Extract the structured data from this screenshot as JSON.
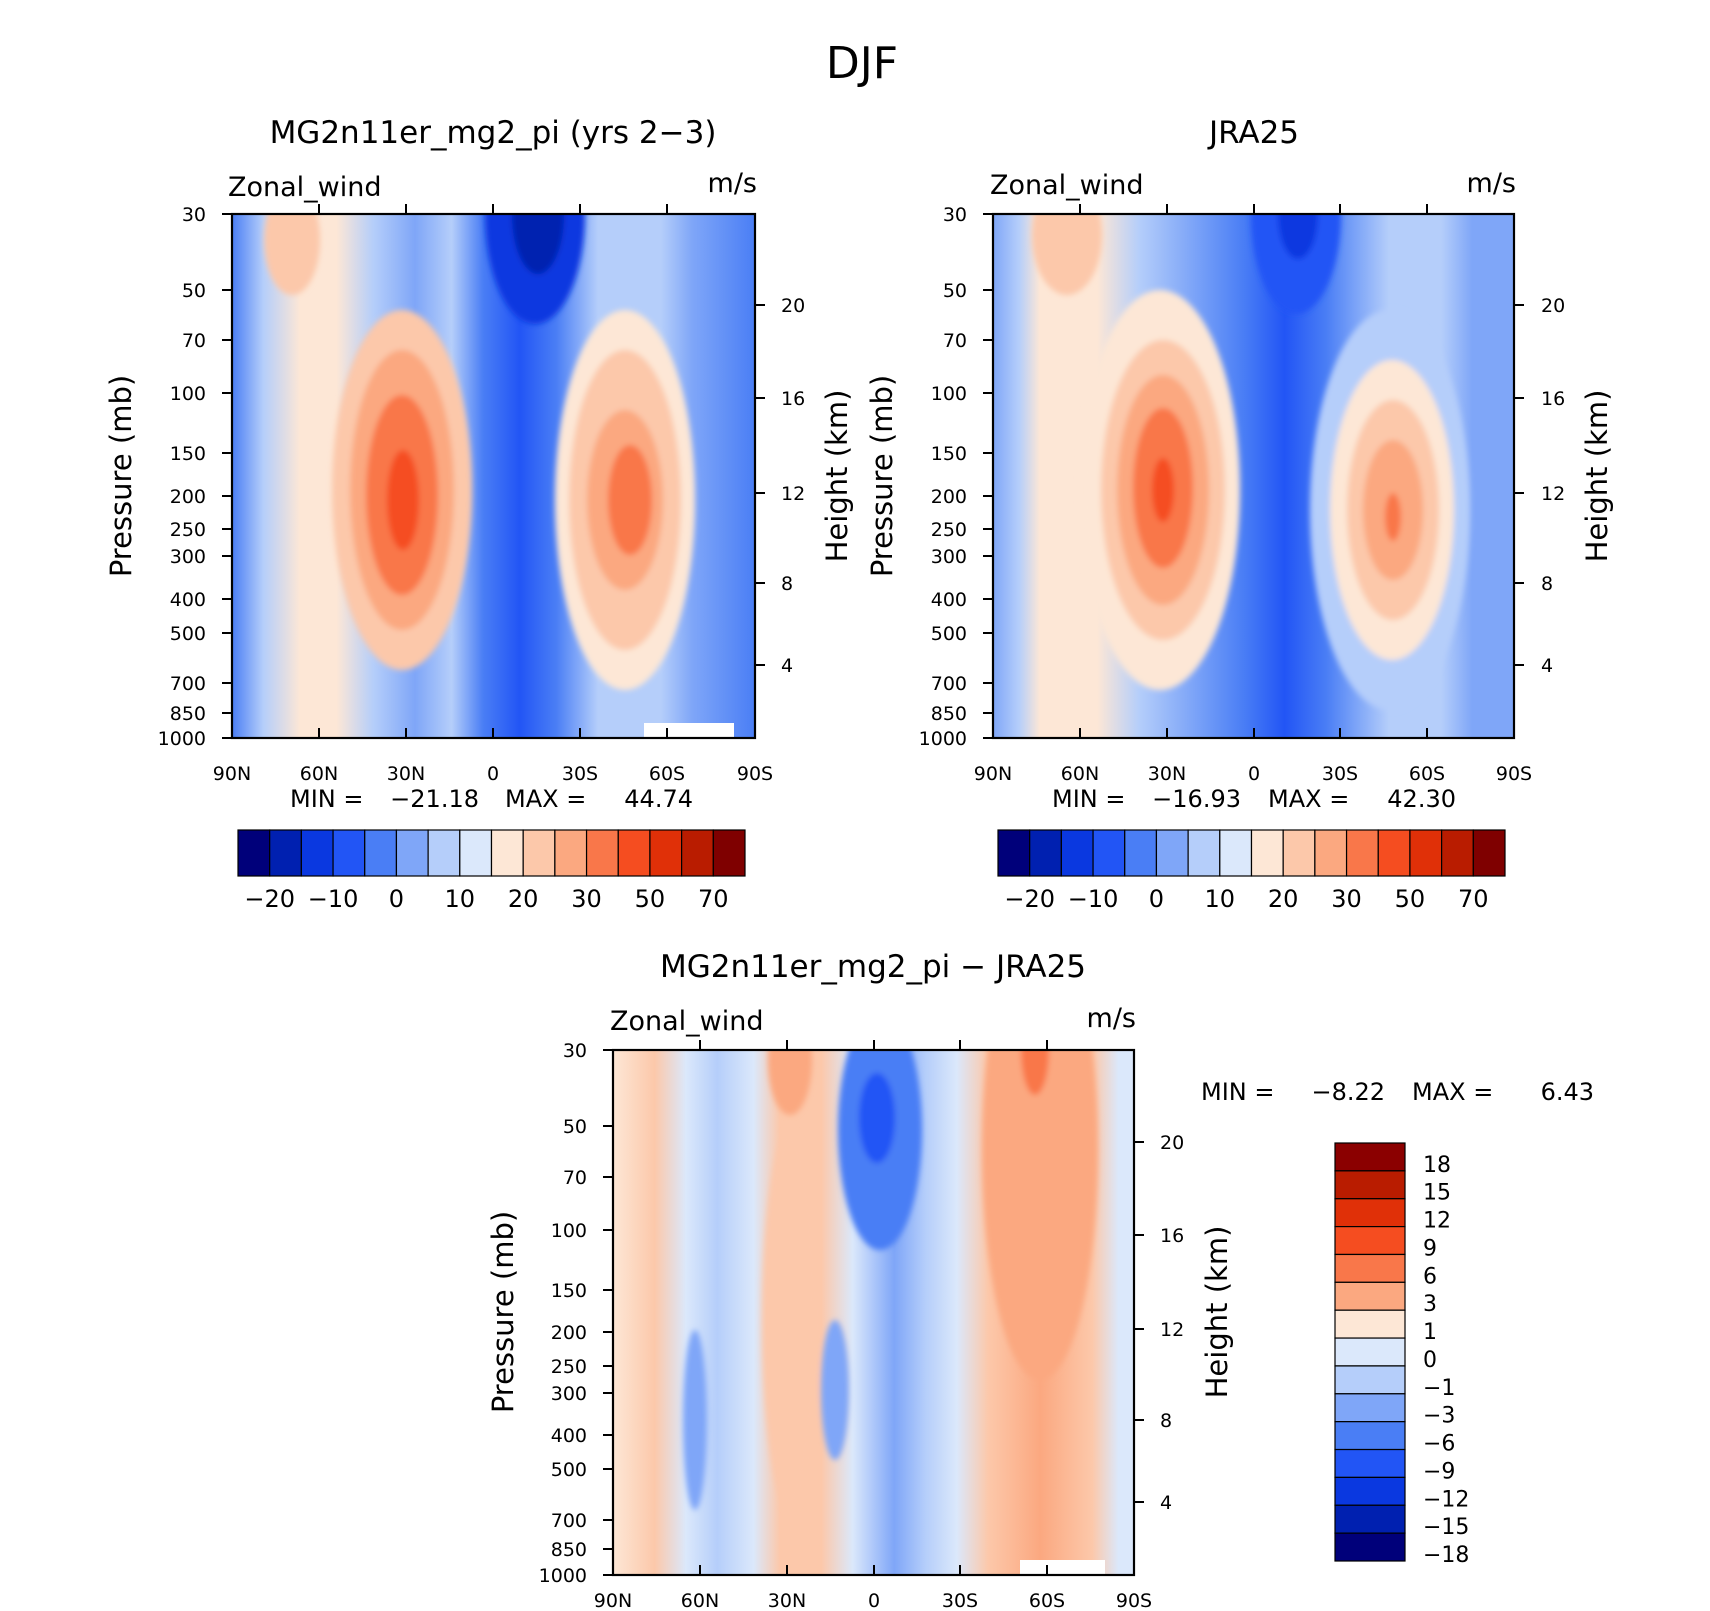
{
  "figure": {
    "title": "DJF"
  },
  "chart_data": [
    {
      "type": "heatmap",
      "title": "MG2n11er_mg2_pi (yrs 2−3)",
      "variable_label": "Zonal_wind",
      "units_label": "m/s",
      "ylabel": "Pressure (mb)",
      "ylabel_right": "Height (km)",
      "x_ticks": [
        "90N",
        "60N",
        "30N",
        "0",
        "30S",
        "60S",
        "90S"
      ],
      "xlim": [
        90,
        -90
      ],
      "y_ticks": [
        "30",
        "50",
        "70",
        "100",
        "150",
        "200",
        "250",
        "300",
        "400",
        "500",
        "700",
        "850",
        "1000"
      ],
      "ylim": [
        1000,
        30
      ],
      "y_scale": "log",
      "right_ticks": [
        "20",
        "16",
        "12",
        "8",
        "4"
      ],
      "stats": {
        "min_label": "MIN =",
        "min": "−21.18",
        "max_label": "MAX =",
        "max": "44.74"
      },
      "colorbar": {
        "orientation": "horizontal",
        "colors": [
          "#00007a",
          "#0020b0",
          "#0a38e0",
          "#2255f5",
          "#4a7ef5",
          "#7fa6f8",
          "#b5cefa",
          "#dbe8fb",
          "#fde7d6",
          "#fcc8aa",
          "#fba880",
          "#f9774a",
          "#f54d20",
          "#e03008",
          "#b91c00",
          "#7f0000"
        ],
        "labels": [
          "−20",
          "−10",
          "0",
          "10",
          "20",
          "30",
          "50",
          "70"
        ]
      },
      "features": [
        {
          "lat": 38,
          "p": 250,
          "value": 44.74
        },
        {
          "lat": -50,
          "p": 200,
          "value": 38
        },
        {
          "lat": -15,
          "p": 30,
          "value": -21.18
        }
      ]
    },
    {
      "type": "heatmap",
      "title": "JRA25",
      "variable_label": "Zonal_wind",
      "units_label": "m/s",
      "ylabel": "Pressure (mb)",
      "ylabel_right": "Height (km)",
      "x_ticks": [
        "90N",
        "60N",
        "30N",
        "0",
        "30S",
        "60S",
        "90S"
      ],
      "xlim": [
        90,
        -90
      ],
      "y_ticks": [
        "30",
        "50",
        "70",
        "100",
        "150",
        "200",
        "250",
        "300",
        "400",
        "500",
        "700",
        "850",
        "1000"
      ],
      "ylim": [
        1000,
        30
      ],
      "y_scale": "log",
      "right_ticks": [
        "20",
        "16",
        "12",
        "8",
        "4"
      ],
      "stats": {
        "min_label": "MIN =",
        "min": "−16.93",
        "max_label": "MAX =",
        "max": "42.30"
      },
      "colorbar": {
        "orientation": "horizontal",
        "colors": [
          "#00007a",
          "#0020b0",
          "#0a38e0",
          "#2255f5",
          "#4a7ef5",
          "#7fa6f8",
          "#b5cefa",
          "#dbe8fb",
          "#fde7d6",
          "#fcc8aa",
          "#fba880",
          "#f9774a",
          "#f54d20",
          "#e03008",
          "#b91c00",
          "#7f0000"
        ],
        "labels": [
          "−20",
          "−10",
          "0",
          "10",
          "20",
          "30",
          "50",
          "70"
        ]
      },
      "features": [
        {
          "lat": 31,
          "p": 200,
          "value": 42.3
        },
        {
          "lat": -48,
          "p": 250,
          "value": 36
        },
        {
          "lat": -15,
          "p": 30,
          "value": -16.93
        }
      ]
    },
    {
      "type": "heatmap",
      "title": "MG2n11er_mg2_pi − JRA25",
      "variable_label": "Zonal_wind",
      "units_label": "m/s",
      "ylabel": "Pressure (mb)",
      "ylabel_right": "Height (km)",
      "x_ticks": [
        "90N",
        "60N",
        "30N",
        "0",
        "30S",
        "60S",
        "90S"
      ],
      "xlim": [
        90,
        -90
      ],
      "y_ticks": [
        "30",
        "50",
        "70",
        "100",
        "150",
        "200",
        "250",
        "300",
        "400",
        "500",
        "700",
        "850",
        "1000"
      ],
      "ylim": [
        1000,
        30
      ],
      "y_scale": "log",
      "right_ticks": [
        "20",
        "16",
        "12",
        "8",
        "4"
      ],
      "stats": {
        "min_label": "MIN =",
        "min": "−8.22",
        "max_label": "MAX =",
        "max": "6.43"
      },
      "colorbar": {
        "orientation": "vertical",
        "colors": [
          "#8b0000",
          "#b91c00",
          "#e03008",
          "#f54d20",
          "#f9774a",
          "#fba880",
          "#fde7d6",
          "#dbe8fb",
          "#b5cefa",
          "#7fa6f8",
          "#4a7ef5",
          "#2255f5",
          "#0a38e0",
          "#0020b0",
          "#00007a"
        ],
        "labels": [
          "18",
          "15",
          "12",
          "9",
          "6",
          "3",
          "1",
          "0",
          "−1",
          "−3",
          "−6",
          "−9",
          "−12",
          "−15",
          "−18"
        ]
      },
      "features": [
        {
          "lat": -55,
          "p": 30,
          "value": 6.43
        },
        {
          "lat": 0,
          "p": 50,
          "value": -8.22
        }
      ]
    }
  ]
}
